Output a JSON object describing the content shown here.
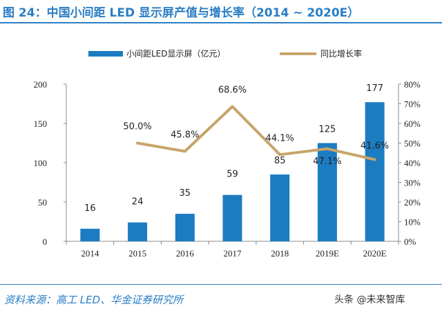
{
  "figure": {
    "title": "图 24：中国小间距 LED 显示屏产值与增长率（2014 ~ 2020E）",
    "source": "资料来源：高工 LED、华金证券研究所",
    "watermark": "头条 @未来智库"
  },
  "chart_data": {
    "type": "bar",
    "categories": [
      "2014",
      "2015",
      "2016",
      "2017",
      "2018",
      "2019E",
      "2020E"
    ],
    "series": [
      {
        "name": "小间距LED显示屏（亿元）",
        "type": "bar",
        "axis": "left",
        "values": [
          16,
          24,
          35,
          59,
          85,
          125,
          177
        ],
        "labels": [
          "16",
          "24",
          "35",
          "59",
          "85",
          "125",
          "177"
        ]
      },
      {
        "name": "同比增长率",
        "type": "line",
        "axis": "right",
        "values": [
          null,
          50.0,
          45.8,
          68.6,
          44.1,
          47.1,
          41.6
        ],
        "labels": [
          "",
          "50.0%",
          "45.8%",
          "68.6%",
          "44.1%",
          "47.1%",
          "41.6%"
        ]
      }
    ],
    "left_axis": {
      "ylim": [
        0,
        200
      ],
      "ticks": [
        "0",
        "50",
        "100",
        "150",
        "200"
      ]
    },
    "right_axis": {
      "ylim": [
        0,
        80
      ],
      "ticks": [
        "0%",
        "10%",
        "20%",
        "30%",
        "40%",
        "50%",
        "60%",
        "70%",
        "80%"
      ]
    },
    "legend_position": "top",
    "grid": false,
    "colors": {
      "bar": "#1c7cc2",
      "line": "#c8a46a",
      "title": "#2a7ec4"
    }
  }
}
